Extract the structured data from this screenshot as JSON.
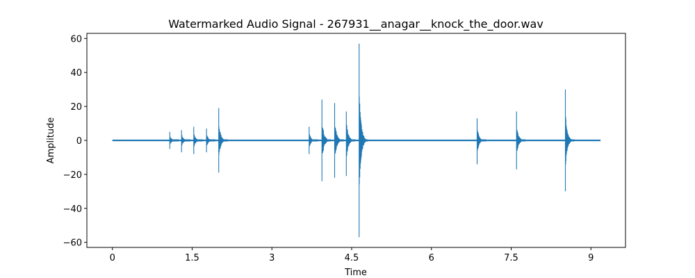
{
  "chart_data": {
    "type": "line",
    "title": "Watermarked Audio Signal - 267931__anagar__knock_the_door.wav",
    "xlabel": "Time",
    "ylabel": "Amplitude",
    "xlim": [
      -0.48,
      9.65
    ],
    "ylim": [
      -63,
      63
    ],
    "x_ticks": [
      0,
      1.5,
      3,
      4.5,
      6,
      7.5,
      9
    ],
    "x_tick_labels": [
      "0",
      "1.5",
      "3",
      "4.5",
      "6",
      "7.5",
      "9"
    ],
    "y_ticks": [
      -60,
      -40,
      -20,
      0,
      20,
      40,
      60
    ],
    "y_tick_labels": [
      "−60",
      "−40",
      "−20",
      "0",
      "20",
      "40",
      "60"
    ],
    "grid": false,
    "line_color": "#1f77b4",
    "signal": {
      "x_start": 0,
      "x_end": 9.18,
      "transients": [
        {
          "x": 1.08,
          "peak": 5,
          "trough": -5
        },
        {
          "x": 1.3,
          "peak": 6,
          "trough": -7
        },
        {
          "x": 1.53,
          "peak": 8,
          "trough": -8
        },
        {
          "x": 1.77,
          "peak": 7,
          "trough": -7
        },
        {
          "x": 2.0,
          "peak": 19,
          "trough": -19
        },
        {
          "x": 3.7,
          "peak": 8,
          "trough": -8
        },
        {
          "x": 3.94,
          "peak": 24,
          "trough": -24
        },
        {
          "x": 4.18,
          "peak": 22,
          "trough": -22
        },
        {
          "x": 4.4,
          "peak": 17,
          "trough": -21
        },
        {
          "x": 4.64,
          "peak": 57,
          "trough": -57
        },
        {
          "x": 6.86,
          "peak": 13,
          "trough": -14
        },
        {
          "x": 7.6,
          "peak": 17,
          "trough": -17
        },
        {
          "x": 8.52,
          "peak": 30,
          "trough": -30
        }
      ]
    }
  }
}
